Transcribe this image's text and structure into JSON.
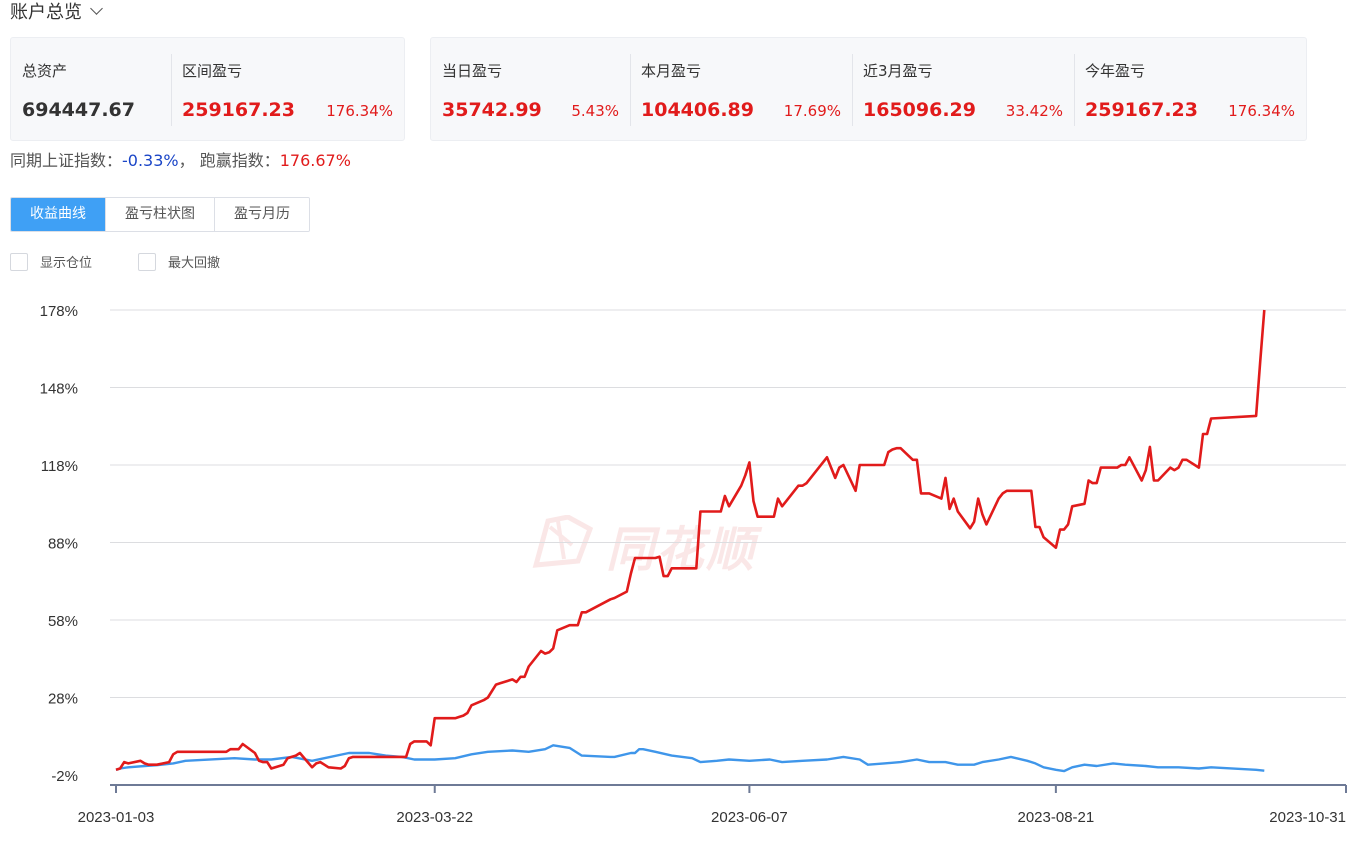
{
  "header": {
    "title": "账户总览",
    "dropdown_icon": "chevron-down-icon"
  },
  "summary": [
    {
      "label": "总资产",
      "value": "694447.67",
      "pct": ""
    },
    {
      "label": "区间盈亏",
      "value": "259167.23",
      "pct": "176.34%"
    }
  ],
  "periods": [
    {
      "label": "当日盈亏",
      "value": "35742.99",
      "pct": "5.43%"
    },
    {
      "label": "本月盈亏",
      "value": "104406.89",
      "pct": "17.69%"
    },
    {
      "label": "近3月盈亏",
      "value": "165096.29",
      "pct": "33.42%"
    },
    {
      "label": "今年盈亏",
      "value": "259167.23",
      "pct": "176.34%"
    }
  ],
  "compare": {
    "index_label": "同期上证指数：",
    "index_value": "-0.33%",
    "sep": "，",
    "beat_label": "跑赢指数：",
    "beat_value": "176.67%"
  },
  "tabs": [
    "收益曲线",
    "盈亏柱状图",
    "盈亏月历"
  ],
  "options": [
    "显示仓位",
    "最大回撤"
  ],
  "watermark": "同花顺",
  "colors": {
    "account": "#e11b1b",
    "index": "#3f96ea",
    "accent": "#3fa0f5",
    "negative": "#1a45c7"
  },
  "chart_data": {
    "type": "line",
    "x_ticks": [
      "2023-01-03",
      "2023-03-22",
      "2023-06-07",
      "2023-08-21",
      "2023-10-31"
    ],
    "x_range": [
      "2023-01-03",
      "2023-10-31"
    ],
    "y_ticks": [
      "178%",
      "148%",
      "118%",
      "88%",
      "58%",
      "28%",
      "-2%"
    ],
    "ylim": [
      -2,
      178
    ],
    "grid": true,
    "series": [
      {
        "color": "#e11b1b",
        "points": [
          [
            "2023-01-03",
            0
          ],
          [
            "2023-01-04",
            0.5
          ],
          [
            "2023-01-05",
            3
          ],
          [
            "2023-01-06",
            2.5
          ],
          [
            "2023-01-09",
            3.5
          ],
          [
            "2023-01-10",
            2.5
          ],
          [
            "2023-01-11",
            2
          ],
          [
            "2023-01-12",
            2
          ],
          [
            "2023-01-13",
            2
          ],
          [
            "2023-01-16",
            3
          ],
          [
            "2023-01-17",
            6
          ],
          [
            "2023-01-18",
            7
          ],
          [
            "2023-01-19",
            7
          ],
          [
            "2023-01-20",
            7
          ],
          [
            "2023-01-30",
            7
          ],
          [
            "2023-01-31",
            8
          ],
          [
            "2023-02-01",
            8
          ],
          [
            "2023-02-02",
            8
          ],
          [
            "2023-02-03",
            10
          ],
          [
            "2023-02-06",
            6.5
          ],
          [
            "2023-02-07",
            3.5
          ],
          [
            "2023-02-08",
            3
          ],
          [
            "2023-02-09",
            3
          ],
          [
            "2023-02-10",
            0.5
          ],
          [
            "2023-02-13",
            2
          ],
          [
            "2023-02-14",
            4.5
          ],
          [
            "2023-02-15",
            5
          ],
          [
            "2023-02-16",
            5.5
          ],
          [
            "2023-02-17",
            6.5
          ],
          [
            "2023-02-20",
            1
          ],
          [
            "2023-02-21",
            2.5
          ],
          [
            "2023-02-22",
            3
          ],
          [
            "2023-02-23",
            2
          ],
          [
            "2023-02-24",
            1
          ],
          [
            "2023-02-27",
            0.5
          ],
          [
            "2023-02-28",
            1.5
          ],
          [
            "2023-03-01",
            4.5
          ],
          [
            "2023-03-02",
            5
          ],
          [
            "2023-03-03",
            5
          ],
          [
            "2023-03-06",
            5
          ],
          [
            "2023-03-07",
            5
          ],
          [
            "2023-03-08",
            5
          ],
          [
            "2023-03-09",
            5
          ],
          [
            "2023-03-10",
            5
          ],
          [
            "2023-03-13",
            5
          ],
          [
            "2023-03-14",
            5
          ],
          [
            "2023-03-15",
            5
          ],
          [
            "2023-03-16",
            10
          ],
          [
            "2023-03-17",
            11
          ],
          [
            "2023-03-20",
            11
          ],
          [
            "2023-03-21",
            9.5
          ],
          [
            "2023-03-22",
            20
          ],
          [
            "2023-03-23",
            20
          ],
          [
            "2023-03-24",
            20
          ],
          [
            "2023-03-27",
            20
          ],
          [
            "2023-03-28",
            20.5
          ],
          [
            "2023-03-29",
            21
          ],
          [
            "2023-03-30",
            22
          ],
          [
            "2023-03-31",
            25
          ],
          [
            "2023-04-03",
            27
          ],
          [
            "2023-04-04",
            28
          ],
          [
            "2023-04-06",
            33
          ],
          [
            "2023-04-07",
            33.5
          ],
          [
            "2023-04-10",
            35
          ],
          [
            "2023-04-11",
            34
          ],
          [
            "2023-04-12",
            36
          ],
          [
            "2023-04-13",
            36
          ],
          [
            "2023-04-14",
            40
          ],
          [
            "2023-04-17",
            46
          ],
          [
            "2023-04-18",
            45
          ],
          [
            "2023-04-19",
            45.5
          ],
          [
            "2023-04-20",
            47
          ],
          [
            "2023-04-21",
            54
          ],
          [
            "2023-04-24",
            56
          ],
          [
            "2023-04-25",
            56
          ],
          [
            "2023-04-26",
            56
          ],
          [
            "2023-04-27",
            61
          ],
          [
            "2023-04-28",
            61
          ],
          [
            "2023-05-04",
            66
          ],
          [
            "2023-05-05",
            66.5
          ],
          [
            "2023-05-08",
            69
          ],
          [
            "2023-05-09",
            76
          ],
          [
            "2023-05-10",
            82
          ],
          [
            "2023-05-11",
            82
          ],
          [
            "2023-05-12",
            82
          ],
          [
            "2023-05-15",
            82
          ],
          [
            "2023-05-16",
            82.5
          ],
          [
            "2023-05-17",
            75
          ],
          [
            "2023-05-18",
            75
          ],
          [
            "2023-05-19",
            78
          ],
          [
            "2023-05-22",
            78
          ],
          [
            "2023-05-23",
            78
          ],
          [
            "2023-05-24",
            78
          ],
          [
            "2023-05-25",
            78
          ],
          [
            "2023-05-26",
            100
          ],
          [
            "2023-05-29",
            100
          ],
          [
            "2023-05-30",
            100
          ],
          [
            "2023-05-31",
            100
          ],
          [
            "2023-06-01",
            106
          ],
          [
            "2023-06-02",
            102
          ],
          [
            "2023-06-05",
            110
          ],
          [
            "2023-06-06",
            114
          ],
          [
            "2023-06-07",
            119
          ],
          [
            "2023-06-08",
            104
          ],
          [
            "2023-06-09",
            98
          ],
          [
            "2023-06-12",
            98
          ],
          [
            "2023-06-13",
            98
          ],
          [
            "2023-06-14",
            105
          ],
          [
            "2023-06-15",
            102
          ],
          [
            "2023-06-16",
            104
          ],
          [
            "2023-06-19",
            110
          ],
          [
            "2023-06-20",
            110
          ],
          [
            "2023-06-21",
            111
          ],
          [
            "2023-06-26",
            121
          ],
          [
            "2023-06-27",
            117
          ],
          [
            "2023-06-28",
            113
          ],
          [
            "2023-06-29",
            117
          ],
          [
            "2023-06-30",
            118
          ],
          [
            "2023-07-03",
            108
          ],
          [
            "2023-07-04",
            118
          ],
          [
            "2023-07-05",
            118
          ],
          [
            "2023-07-06",
            118
          ],
          [
            "2023-07-07",
            118
          ],
          [
            "2023-07-10",
            118
          ],
          [
            "2023-07-11",
            123
          ],
          [
            "2023-07-12",
            124
          ],
          [
            "2023-07-13",
            124.5
          ],
          [
            "2023-07-14",
            124.5
          ],
          [
            "2023-07-17",
            120
          ],
          [
            "2023-07-18",
            120
          ],
          [
            "2023-07-19",
            107
          ],
          [
            "2023-07-20",
            107
          ],
          [
            "2023-07-21",
            107
          ],
          [
            "2023-07-24",
            105
          ],
          [
            "2023-07-25",
            113
          ],
          [
            "2023-07-26",
            101
          ],
          [
            "2023-07-27",
            105
          ],
          [
            "2023-07-28",
            100
          ],
          [
            "2023-07-31",
            93.5
          ],
          [
            "2023-08-01",
            96
          ],
          [
            "2023-08-02",
            105
          ],
          [
            "2023-08-03",
            99
          ],
          [
            "2023-08-04",
            95
          ],
          [
            "2023-08-07",
            105
          ],
          [
            "2023-08-08",
            107
          ],
          [
            "2023-08-09",
            108
          ],
          [
            "2023-08-10",
            108
          ],
          [
            "2023-08-11",
            108
          ],
          [
            "2023-08-14",
            108
          ],
          [
            "2023-08-15",
            108
          ],
          [
            "2023-08-16",
            94
          ],
          [
            "2023-08-17",
            94
          ],
          [
            "2023-08-18",
            90
          ],
          [
            "2023-08-21",
            86
          ],
          [
            "2023-08-22",
            93
          ],
          [
            "2023-08-23",
            93
          ],
          [
            "2023-08-24",
            95
          ],
          [
            "2023-08-25",
            102
          ],
          [
            "2023-08-28",
            103
          ],
          [
            "2023-08-29",
            112
          ],
          [
            "2023-08-30",
            111
          ],
          [
            "2023-08-31",
            111
          ],
          [
            "2023-09-01",
            117
          ],
          [
            "2023-09-04",
            117
          ],
          [
            "2023-09-05",
            117
          ],
          [
            "2023-09-06",
            118
          ],
          [
            "2023-09-07",
            118
          ],
          [
            "2023-09-08",
            121
          ],
          [
            "2023-09-11",
            112
          ],
          [
            "2023-09-12",
            116
          ],
          [
            "2023-09-13",
            125
          ],
          [
            "2023-09-14",
            112
          ],
          [
            "2023-09-15",
            112
          ],
          [
            "2023-09-18",
            117
          ],
          [
            "2023-09-19",
            116
          ],
          [
            "2023-09-20",
            117
          ],
          [
            "2023-09-21",
            120
          ],
          [
            "2023-09-22",
            120
          ],
          [
            "2023-09-25",
            117
          ],
          [
            "2023-09-26",
            130
          ],
          [
            "2023-09-27",
            130
          ],
          [
            "2023-09-28",
            136
          ],
          [
            "2023-10-09",
            137
          ],
          [
            "2023-10-10",
            158
          ],
          [
            "2023-10-11",
            178
          ]
        ]
      },
      {
        "color": "#3f96ea",
        "points": [
          [
            "2023-01-03",
            0
          ],
          [
            "2023-01-04",
            0.5
          ],
          [
            "2023-01-06",
            1
          ],
          [
            "2023-01-10",
            1.5
          ],
          [
            "2023-01-13",
            1.8
          ],
          [
            "2023-01-17",
            2.5
          ],
          [
            "2023-01-20",
            3.5
          ],
          [
            "2023-02-01",
            4.5
          ],
          [
            "2023-02-06",
            4
          ],
          [
            "2023-02-10",
            4
          ],
          [
            "2023-02-15",
            5
          ],
          [
            "2023-02-20",
            3.5
          ],
          [
            "2023-02-23",
            4.5
          ],
          [
            "2023-03-01",
            6.5
          ],
          [
            "2023-03-06",
            6.5
          ],
          [
            "2023-03-10",
            5.5
          ],
          [
            "2023-03-14",
            5
          ],
          [
            "2023-03-17",
            4
          ],
          [
            "2023-03-22",
            4
          ],
          [
            "2023-03-27",
            4.5
          ],
          [
            "2023-03-31",
            6
          ],
          [
            "2023-04-04",
            7
          ],
          [
            "2023-04-10",
            7.5
          ],
          [
            "2023-04-14",
            7
          ],
          [
            "2023-04-18",
            8
          ],
          [
            "2023-04-20",
            9.5
          ],
          [
            "2023-04-24",
            8.5
          ],
          [
            "2023-04-27",
            5.5
          ],
          [
            "2023-05-04",
            5
          ],
          [
            "2023-05-05",
            5
          ],
          [
            "2023-05-09",
            6.5
          ],
          [
            "2023-05-10",
            6.5
          ],
          [
            "2023-05-11",
            8
          ],
          [
            "2023-05-12",
            8
          ],
          [
            "2023-05-15",
            7
          ],
          [
            "2023-05-19",
            5.5
          ],
          [
            "2023-05-24",
            4.5
          ],
          [
            "2023-05-26",
            3
          ],
          [
            "2023-05-30",
            3.5
          ],
          [
            "2023-06-02",
            4
          ],
          [
            "2023-06-07",
            3.5
          ],
          [
            "2023-06-12",
            4
          ],
          [
            "2023-06-15",
            3
          ],
          [
            "2023-06-20",
            3.5
          ],
          [
            "2023-06-26",
            4
          ],
          [
            "2023-06-30",
            5
          ],
          [
            "2023-07-04",
            4
          ],
          [
            "2023-07-06",
            2
          ],
          [
            "2023-07-10",
            2.5
          ],
          [
            "2023-07-14",
            3
          ],
          [
            "2023-07-18",
            4
          ],
          [
            "2023-07-21",
            3
          ],
          [
            "2023-07-25",
            3
          ],
          [
            "2023-07-28",
            2
          ],
          [
            "2023-08-01",
            2
          ],
          [
            "2023-08-03",
            3
          ],
          [
            "2023-08-07",
            4
          ],
          [
            "2023-08-10",
            5
          ],
          [
            "2023-08-14",
            3.5
          ],
          [
            "2023-08-16",
            2.5
          ],
          [
            "2023-08-18",
            1
          ],
          [
            "2023-08-21",
            0
          ],
          [
            "2023-08-23",
            -0.5
          ],
          [
            "2023-08-25",
            1
          ],
          [
            "2023-08-28",
            2
          ],
          [
            "2023-08-31",
            1.5
          ],
          [
            "2023-09-04",
            2.5
          ],
          [
            "2023-09-07",
            2
          ],
          [
            "2023-09-12",
            1.5
          ],
          [
            "2023-09-15",
            1
          ],
          [
            "2023-09-20",
            1
          ],
          [
            "2023-09-25",
            0.5
          ],
          [
            "2023-09-28",
            1
          ],
          [
            "2023-10-09",
            0
          ],
          [
            "2023-10-11",
            -0.33
          ]
        ]
      }
    ]
  }
}
